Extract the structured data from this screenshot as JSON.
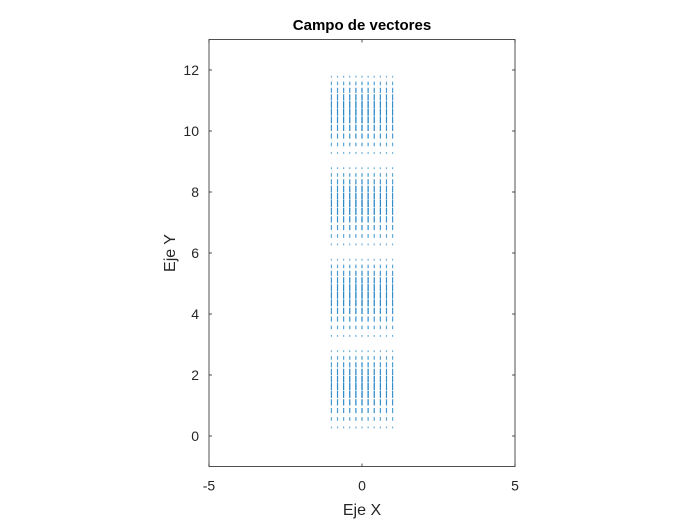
{
  "chart_data": {
    "type": "quiver",
    "title": "Campo de vectores",
    "xlabel": "Eje X",
    "ylabel": "Eje Y",
    "xlim": [
      -5,
      5
    ],
    "ylim": [
      -1,
      13
    ],
    "xticks": [
      "-5",
      "0",
      "5"
    ],
    "yticks": [
      "0",
      "2",
      "4",
      "6",
      "8",
      "10",
      "12"
    ],
    "grid": false,
    "x_range": [
      -1,
      1
    ],
    "x_step": 0.2,
    "y_blocks": [
      [
        0.25,
        2.75
      ],
      [
        3.25,
        5.75
      ],
      [
        6.25,
        8.75
      ],
      [
        9.25,
        11.75
      ]
    ],
    "y_step": 0.25,
    "vector_direction": "vertical",
    "color": "#0072BD"
  }
}
